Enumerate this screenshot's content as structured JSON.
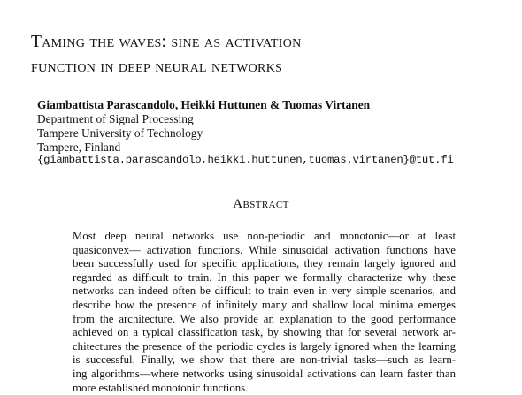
{
  "title": {
    "lines": [
      "Taming the waves: sine as activation",
      "function in deep neural networks"
    ]
  },
  "authors": "Giambattista Parascandolo, Heikki Huttunen & Tuomas Virtanen",
  "affiliation": {
    "lines": [
      "Department of Signal Processing",
      "Tampere University of Technology",
      "Tampere, Finland"
    ]
  },
  "email": "{giambattista.parascandolo,heikki.huttunen,tuomas.virtanen}@tut.fi",
  "abstract": {
    "heading": "Abstract",
    "lines": [
      "Most deep neural networks use non-periodic and monotonic—or at least",
      "quasiconvex— activation functions. While sinusoidal activation functions have",
      "been successfully used for specific applications, they remain largely ignored and",
      "regarded as difficult to train. In this paper we formally characterize why these",
      "networks can indeed often be difficult to train even in very simple scenarios, and",
      "describe how the presence of infinitely many and shallow local minima emerges",
      "from the architecture. We also provide an explanation to the good performance",
      "achieved on a typical classification task, by showing that for several network ar-",
      "chitectures the presence of the periodic cycles is largely ignored when the learning",
      "is successful. Finally, we show that there are non-trivial tasks—such as learn-",
      "ing algorithms—where networks using sinusoidal activations can learn faster than",
      "more established monotonic functions."
    ]
  }
}
